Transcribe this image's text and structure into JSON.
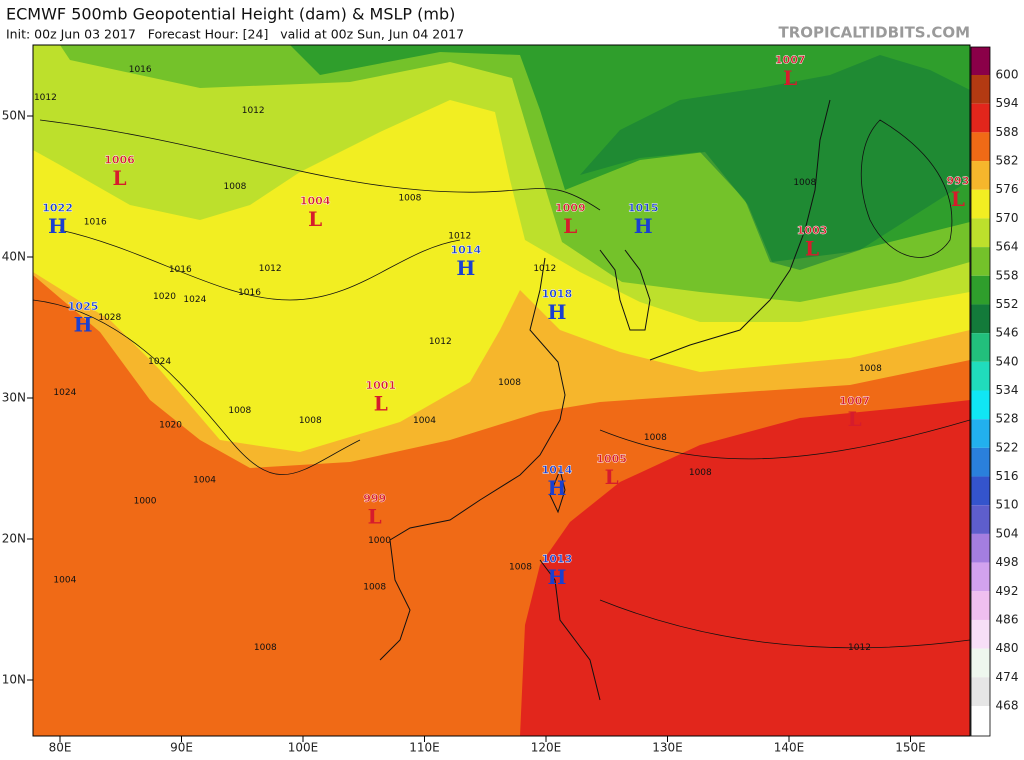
{
  "header": {
    "title": "ECMWF 500mb Geopotential Height (dam) & MSLP (mb)",
    "subtitle": "Init: 00z Jun 03 2017   Forecast Hour: [24]   valid at 00z Sun, Jun 04 2017",
    "brand": "TROPICALTIDBITS.COM"
  },
  "map": {
    "lon_ticks": [
      {
        "value": 80,
        "label": "80E"
      },
      {
        "value": 90,
        "label": "90E"
      },
      {
        "value": 100,
        "label": "100E"
      },
      {
        "value": 110,
        "label": "110E"
      },
      {
        "value": 120,
        "label": "120E"
      },
      {
        "value": 130,
        "label": "130E"
      },
      {
        "value": 140,
        "label": "140E"
      },
      {
        "value": 150,
        "label": "150E"
      }
    ],
    "lat_ticks": [
      {
        "value": 50,
        "label": "50N"
      },
      {
        "value": 40,
        "label": "40N"
      },
      {
        "value": 30,
        "label": "30N"
      },
      {
        "value": 20,
        "label": "20N"
      },
      {
        "value": 10,
        "label": "10N"
      }
    ],
    "pressure_centers": [
      {
        "type": "L",
        "pressure": 1007,
        "lon": 140.1,
        "lat": 52.6
      },
      {
        "type": "L",
        "pressure": 1006,
        "lon": 84.9,
        "lat": 45.5
      },
      {
        "type": "H",
        "pressure": 1022,
        "lon": 79.8,
        "lat": 42.1
      },
      {
        "type": "L",
        "pressure": 1004,
        "lon": 101.0,
        "lat": 42.6
      },
      {
        "type": "H",
        "pressure": 1014,
        "lon": 113.4,
        "lat": 39.1
      },
      {
        "type": "L",
        "pressure": 1009,
        "lon": 122.0,
        "lat": 42.1
      },
      {
        "type": "H",
        "pressure": 1015,
        "lon": 128.0,
        "lat": 42.1
      },
      {
        "type": "L",
        "pressure": 1003,
        "lon": 141.9,
        "lat": 40.5
      },
      {
        "type": "L",
        "pressure": 993,
        "lon": 153.9,
        "lat": 44.0
      },
      {
        "type": "H",
        "pressure": 1018,
        "lon": 120.9,
        "lat": 36.0
      },
      {
        "type": "H",
        "pressure": 1025,
        "lon": 81.9,
        "lat": 35.1
      },
      {
        "type": "L",
        "pressure": 1001,
        "lon": 106.4,
        "lat": 29.5
      },
      {
        "type": "L",
        "pressure": 1007,
        "lon": 145.4,
        "lat": 28.4
      },
      {
        "type": "H",
        "pressure": 1014,
        "lon": 120.9,
        "lat": 23.5
      },
      {
        "type": "L",
        "pressure": 1005,
        "lon": 125.4,
        "lat": 24.3
      },
      {
        "type": "L",
        "pressure": 999,
        "lon": 105.9,
        "lat": 21.5
      },
      {
        "type": "H",
        "pressure": 1013,
        "lon": 120.9,
        "lat": 17.2
      }
    ],
    "isobar_labels": [
      {
        "value": 1016,
        "lon": 86.6,
        "lat": 53.3
      },
      {
        "value": 1012,
        "lon": 78.8,
        "lat": 51.3
      },
      {
        "value": 1012,
        "lon": 95.9,
        "lat": 50.4
      },
      {
        "value": 1008,
        "lon": 94.4,
        "lat": 45.0
      },
      {
        "value": 1008,
        "lon": 108.8,
        "lat": 44.2
      },
      {
        "value": 1016,
        "lon": 82.9,
        "lat": 42.5
      },
      {
        "value": 1016,
        "lon": 89.9,
        "lat": 39.1
      },
      {
        "value": 1012,
        "lon": 97.3,
        "lat": 39.2
      },
      {
        "value": 1012,
        "lon": 112.9,
        "lat": 41.5
      },
      {
        "value": 1012,
        "lon": 119.9,
        "lat": 39.2
      },
      {
        "value": 1016,
        "lon": 95.6,
        "lat": 37.5
      },
      {
        "value": 1020,
        "lon": 88.6,
        "lat": 37.2
      },
      {
        "value": 1024,
        "lon": 91.1,
        "lat": 37.0
      },
      {
        "value": 1028,
        "lon": 84.1,
        "lat": 35.7
      },
      {
        "value": 1024,
        "lon": 88.2,
        "lat": 32.6
      },
      {
        "value": 1024,
        "lon": 80.4,
        "lat": 30.4
      },
      {
        "value": 1020,
        "lon": 89.1,
        "lat": 28.1
      },
      {
        "value": 1008,
        "lon": 94.8,
        "lat": 29.1
      },
      {
        "value": 1008,
        "lon": 100.6,
        "lat": 28.4
      },
      {
        "value": 1004,
        "lon": 110.0,
        "lat": 28.4
      },
      {
        "value": 1012,
        "lon": 111.3,
        "lat": 34.0
      },
      {
        "value": 1008,
        "lon": 117.0,
        "lat": 31.1
      },
      {
        "value": 1008,
        "lon": 141.3,
        "lat": 45.3
      },
      {
        "value": 1008,
        "lon": 146.7,
        "lat": 32.1
      },
      {
        "value": 1008,
        "lon": 129.0,
        "lat": 27.2
      },
      {
        "value": 1008,
        "lon": 132.7,
        "lat": 24.7
      },
      {
        "value": 1004,
        "lon": 91.9,
        "lat": 24.2
      },
      {
        "value": 1000,
        "lon": 87.0,
        "lat": 22.7
      },
      {
        "value": 1000,
        "lon": 106.3,
        "lat": 19.9
      },
      {
        "value": 1008,
        "lon": 105.9,
        "lat": 16.6
      },
      {
        "value": 1008,
        "lon": 96.9,
        "lat": 12.3
      },
      {
        "value": 1004,
        "lon": 80.4,
        "lat": 17.1
      },
      {
        "value": 1012,
        "lon": 145.8,
        "lat": 12.3
      },
      {
        "value": 1008,
        "lon": 117.9,
        "lat": 18.0
      }
    ]
  },
  "colorbar": {
    "levels": [
      600,
      594,
      588,
      582,
      576,
      570,
      564,
      558,
      552,
      546,
      540,
      534,
      528,
      522,
      516,
      510,
      504,
      498,
      492,
      486,
      480,
      474,
      468
    ],
    "colors": [
      "#8a0048",
      "#b33a12",
      "#e2261c",
      "#f06a16",
      "#f6b62c",
      "#f2ee22",
      "#bde02c",
      "#74c22a",
      "#2f9e2c",
      "#137a3a",
      "#22bf7c",
      "#20dcbc",
      "#10e6f4",
      "#22b0ee",
      "#2a80dc",
      "#3454cc",
      "#5e5ecc",
      "#a47ee0",
      "#d2a2ee",
      "#efbff0",
      "#f7dff7",
      "#eef7ee",
      "#e6e6e6",
      "#ffffff"
    ]
  }
}
